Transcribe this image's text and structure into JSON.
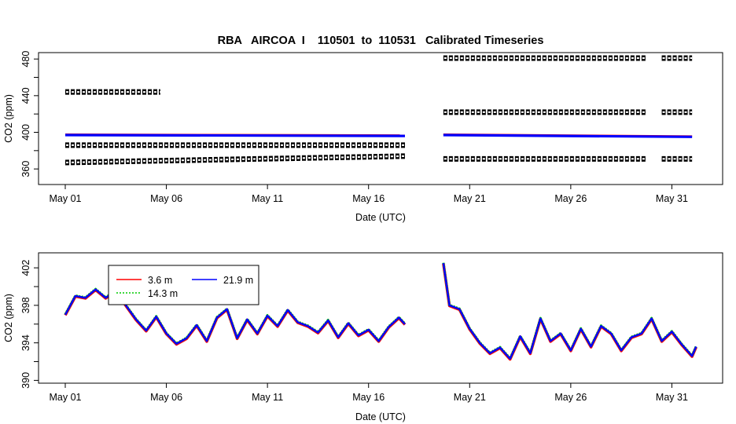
{
  "title": "RBA   AIRCOA  I    110501  to  110531   Calibrated Timeseries",
  "chart_data": [
    {
      "type": "scatter",
      "panel": "top",
      "xlabel": "Date (UTC)",
      "ylabel": "CO2 (ppm)",
      "xlim": [
        0,
        31.5
      ],
      "ylim": [
        343,
        487
      ],
      "x_ticks": [
        {
          "label": "May 01",
          "value": 0
        },
        {
          "label": "May 06",
          "value": 5
        },
        {
          "label": "May 11",
          "value": 10
        },
        {
          "label": "May 16",
          "value": 15
        },
        {
          "label": "May 21",
          "value": 20
        },
        {
          "label": "May 26",
          "value": 25
        },
        {
          "label": "May 31",
          "value": 30
        }
      ],
      "y_ticks": [
        360,
        380,
        400,
        420,
        440,
        460,
        480
      ],
      "y_tick_labels": [
        "360",
        "",
        "400",
        "",
        "440",
        "",
        "480"
      ],
      "series": [
        {
          "kind": "calibration",
          "color": "#000000",
          "segments": [
            {
              "x": [
                0.0,
                4.7
              ],
              "y": [
                444,
                444
              ]
            },
            {
              "x": [
                0.0,
                16.8
              ],
              "y": [
                386,
                386
              ]
            },
            {
              "x": [
                0.0,
                16.8
              ],
              "y": [
                367,
                374
              ]
            },
            {
              "x": [
                18.7,
                28.7
              ],
              "y": [
                481,
                481
              ]
            },
            {
              "x": [
                29.5,
                31.0
              ],
              "y": [
                481,
                481
              ]
            },
            {
              "x": [
                18.7,
                28.7
              ],
              "y": [
                422,
                422
              ]
            },
            {
              "x": [
                29.5,
                31.0
              ],
              "y": [
                422,
                422
              ]
            },
            {
              "x": [
                18.7,
                28.7
              ],
              "y": [
                371,
                371
              ]
            },
            {
              "x": [
                29.5,
                31.0
              ],
              "y": [
                371,
                371
              ]
            }
          ]
        },
        {
          "kind": "ambient",
          "color": "#0000ff",
          "segments": [
            {
              "x": [
                0.0,
                16.8
              ],
              "y": [
                397,
                396
              ]
            },
            {
              "x": [
                18.7,
                31.0
              ],
              "y": [
                397,
                395
              ]
            }
          ]
        }
      ]
    },
    {
      "type": "line",
      "panel": "bottom",
      "xlabel": "Date (UTC)",
      "ylabel": "CO2 (ppm)",
      "xlim": [
        0,
        31.5
      ],
      "ylim": [
        389.7,
        403.6
      ],
      "x_ticks": [
        {
          "label": "May 01",
          "value": 0
        },
        {
          "label": "May 06",
          "value": 5
        },
        {
          "label": "May 11",
          "value": 10
        },
        {
          "label": "May 16",
          "value": 15
        },
        {
          "label": "May 21",
          "value": 20
        },
        {
          "label": "May 26",
          "value": 25
        },
        {
          "label": "May 31",
          "value": 30
        }
      ],
      "y_ticks": [
        390,
        392,
        394,
        396,
        398,
        400,
        402
      ],
      "y_tick_labels": [
        "390",
        "",
        "394",
        "",
        "398",
        "",
        "402"
      ],
      "legend": "top-left",
      "series": [
        {
          "name": "3.6 m",
          "color": "#ff0000",
          "dash": "solid"
        },
        {
          "name": "14.3 m",
          "color": "#00cc00",
          "dash": "dotted"
        },
        {
          "name": "21.9 m",
          "color": "#0000ff",
          "dash": "solid"
        }
      ],
      "x": [
        0.0,
        0.5,
        1.0,
        1.5,
        2.0,
        2.5,
        3.0,
        3.5,
        4.0,
        4.5,
        5.0,
        5.5,
        6.0,
        6.5,
        7.0,
        7.5,
        8.0,
        8.5,
        9.0,
        9.5,
        10.0,
        10.5,
        11.0,
        11.5,
        12.0,
        12.5,
        13.0,
        13.5,
        14.0,
        14.5,
        15.0,
        15.5,
        16.0,
        16.5,
        16.8,
        18.7,
        19.0,
        19.5,
        20.0,
        20.5,
        21.0,
        21.5,
        22.0,
        22.5,
        23.0,
        23.5,
        24.0,
        24.5,
        25.0,
        25.5,
        26.0,
        26.5,
        27.0,
        27.5,
        28.0,
        28.5,
        29.0,
        29.5,
        30.0,
        30.5,
        31.0,
        31.2
      ],
      "y": [
        397.0,
        399.0,
        398.8,
        399.7,
        398.8,
        399.6,
        398.0,
        396.5,
        395.3,
        396.8,
        395.0,
        393.9,
        394.5,
        395.9,
        394.2,
        396.7,
        397.6,
        394.5,
        396.5,
        395.0,
        396.9,
        395.8,
        397.5,
        396.2,
        395.8,
        395.1,
        396.4,
        394.6,
        396.1,
        394.8,
        395.4,
        394.2,
        395.7,
        396.7,
        396.0,
        402.5,
        398.0,
        397.6,
        395.5,
        394.0,
        392.9,
        393.5,
        392.3,
        394.7,
        392.9,
        396.6,
        394.2,
        395.0,
        393.2,
        395.5,
        393.6,
        395.8,
        395.0,
        393.2,
        394.6,
        395.0,
        396.6,
        394.2,
        395.2,
        393.8,
        392.6,
        393.6
      ]
    }
  ]
}
